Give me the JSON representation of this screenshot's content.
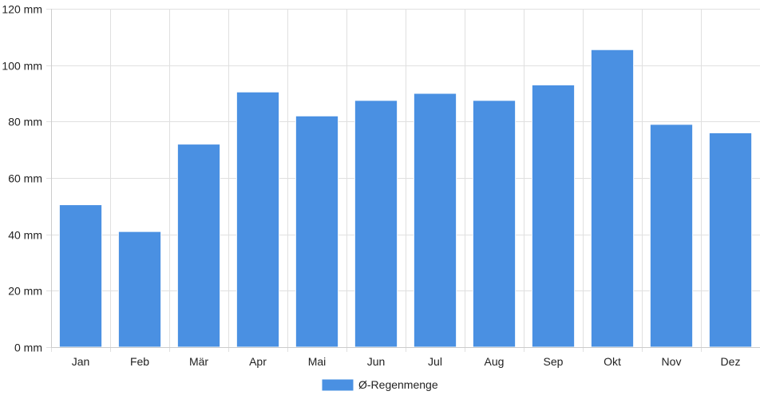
{
  "chart_data": {
    "type": "bar",
    "categories": [
      "Jan",
      "Feb",
      "Mär",
      "Apr",
      "Mai",
      "Jun",
      "Jul",
      "Aug",
      "Sep",
      "Okt",
      "Nov",
      "Dez"
    ],
    "series": [
      {
        "name": "Ø-Regenmenge",
        "values": [
          50.5,
          41,
          72,
          90.5,
          82,
          87.5,
          90,
          87.5,
          93,
          105.5,
          79,
          76
        ],
        "color": "#4a90e2"
      }
    ],
    "ylim": [
      0,
      120
    ],
    "y_ticks": [
      0,
      20,
      40,
      60,
      80,
      100,
      120
    ],
    "y_tick_suffix": " mm",
    "grid": true,
    "legend_position": "bottom"
  }
}
